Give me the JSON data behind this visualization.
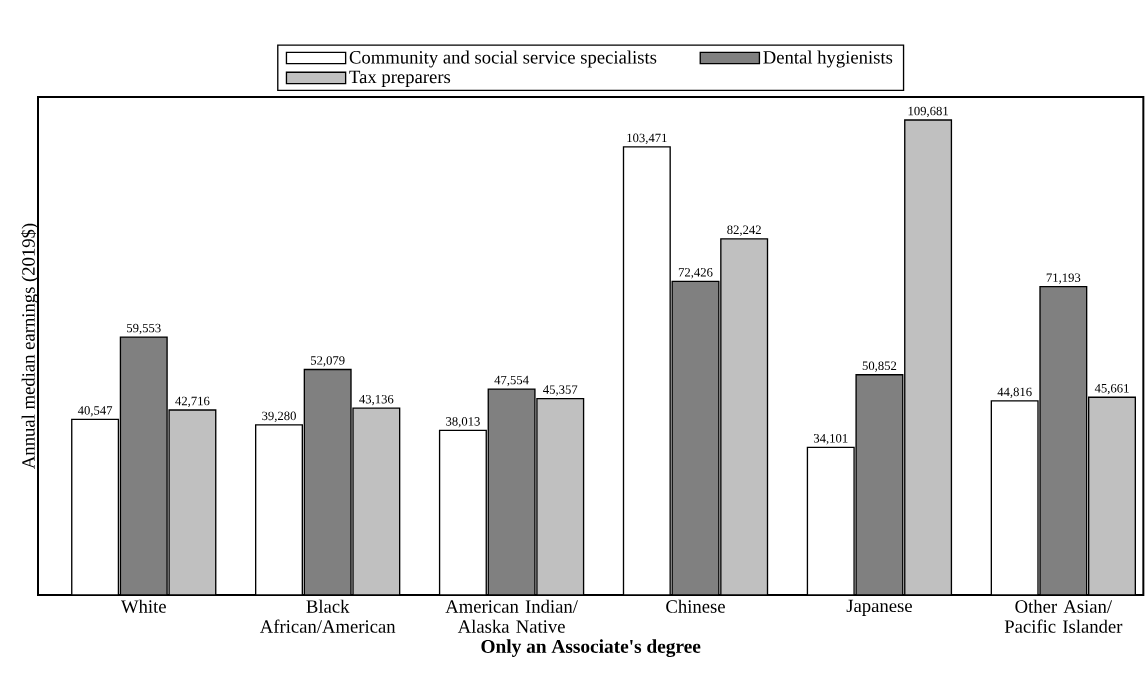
{
  "chart_data": {
    "type": "bar",
    "xlabel": "Only an Associate's degree",
    "ylabel": "Annual median earnings (2019$)",
    "categories": [
      "White",
      "Black African/American",
      "American Indian/ Alaska Native",
      "Chinese",
      "Japanese",
      "Other Asian/ Pacific Islander"
    ],
    "series": [
      {
        "name": "Community and social service specialists",
        "color": "#ffffff",
        "values": [
          40547,
          39280,
          38013,
          103471,
          34101,
          44816
        ],
        "value_labels": [
          "40,547",
          "39,280",
          "38,013",
          "103,471",
          "34,101",
          "44,816"
        ]
      },
      {
        "name": "Dental hygienists",
        "color": "#808080",
        "values": [
          59553,
          52079,
          47554,
          72426,
          50852,
          71193
        ],
        "value_labels": [
          "59,553",
          "52,079",
          "47,554",
          "72,426",
          "50,852",
          "71,193"
        ]
      },
      {
        "name": "Tax preparers",
        "color": "#c0c0c0",
        "values": [
          42716,
          43136,
          45357,
          82242,
          109681,
          45661
        ],
        "value_labels": [
          "42,716",
          "43,136",
          "45,357",
          "82,242",
          "109,681",
          "45,661"
        ]
      }
    ],
    "ylim": [
      0,
      115000
    ],
    "tick_labels": "x",
    "legend": "top",
    "grid": false
  }
}
